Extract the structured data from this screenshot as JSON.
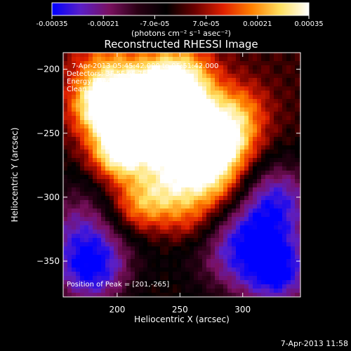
{
  "colorbar": {
    "ticks": [
      "-0.00035",
      "-0.00021",
      "-7.0e-05",
      "7.0e-05",
      "0.00021",
      "0.00035"
    ],
    "tick_values": [
      -0.00035,
      -0.00021,
      -7e-05,
      7e-05,
      0.00021,
      0.00035
    ],
    "range": [
      -0.00035,
      0.00035
    ],
    "units": "(photons cm⁻² s⁻¹ asec⁻²)",
    "stops": [
      "#0000ff",
      "#5a1fc8",
      "#7a1060",
      "#2a0014",
      "#000000",
      "#6a0000",
      "#e02000",
      "#ff8000",
      "#ffe060",
      "#ffffff"
    ]
  },
  "chart_data": {
    "type": "heatmap",
    "title": "Reconstructed RHESSI Image",
    "xlabel": "Heliocentric X (arcsec)",
    "ylabel": "Heliocentric Y (arcsec)",
    "xlim": [
      157,
      346
    ],
    "ylim": [
      -378,
      -187
    ],
    "xticks": [
      200,
      250,
      300
    ],
    "yticks": [
      -200,
      -250,
      -300,
      -350
    ],
    "peak": [
      201,
      -265
    ],
    "annotations": [
      "7-Apr-2013 05:45:42.000 to 05:51:42.000",
      "Detectors: 3F 5F 6F 7F 8F 9F Att 0",
      "Energy Range: 12.0 - 25.0 keV",
      "Clean     Total counts: 8.74E+03"
    ],
    "peak_label": "Position of Peak = [201,-265]"
  },
  "footer": {
    "timestamp": "7-Apr-2013 11:58"
  }
}
